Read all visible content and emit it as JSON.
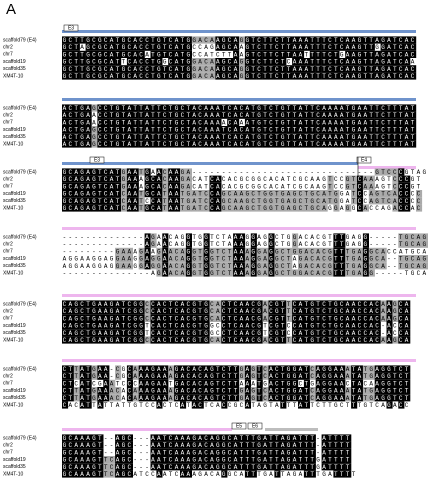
{
  "panel_label": "A",
  "blocks": [
    {
      "exons": [
        "E3"
      ],
      "rows": [
        {
          "name": "scaffold79 (E4)",
          "seq": "GCTTGCGCATGCACCTGTCATGGACAAGCAGGTCTTCTTAAATTTCTCAAGTTAGATCAC"
        },
        {
          "name": "chr2",
          "seq": "GCTAGCGCATGCACCTGTCATGCCAGAGCAAGTCTTCTTAAATTTCTCAAGTTGGATCAC"
        },
        {
          "name": "chr7",
          "seq": "GCTTGCGCATGCACATGTCATGCCATCTTAAGTCTTCTTAATTTTCTGAAGTTAGATCAC"
        },
        {
          "name": "scaffold19",
          "seq": "GCTTGCGCATTCACCTGGCATGGACAAGCAGGTCTTCTCAAATTTCTCAAGTTAGATCAA"
        },
        {
          "name": "scaffold35",
          "seq": "GCTTGCGCATGCACCTGTCATGGACAAGCAGGTCTTCTTAAATTTCTCAAGTTAGATCAC"
        },
        {
          "name": "XM4T-10",
          "seq": "GCTTGCGCATGCACCTGTCATGGACAAGCAGGTCTTCTTAAATTTCTCAAGTTAGATCAC"
        }
      ]
    },
    {
      "exons": [],
      "rows": [
        {
          "name": "scaffold79 (E4)",
          "seq": "ACTGAGCCTGTATTATTCTGCTACAAATCACATGTCTGTTATTCAAAATGAATTCTTTAT"
        },
        {
          "name": "chr2",
          "seq": "ACTGAACCTGTATTATTCTGCTACAAATCACATGTCTGTTATTCAAAATGAATTCTTTAT"
        },
        {
          "name": "chr7",
          "seq": "ACTGAACCTGTATTATTCTGCTACAAAACAAATGTCTGTTATTCAAAATGAATTCTTTAT"
        },
        {
          "name": "scaffold19",
          "seq": "ACTGAGCCTGTATTATTCTGCTACAAATCACATGTCTGTTATTCAAAATGAATTCTTTAT"
        },
        {
          "name": "scaffold35",
          "seq": "ACTGAGCCTGTATTATTCTGCTACAAATCACATGTCTGTTATTCAAAATGAATTCTTTAT"
        },
        {
          "name": "XM4T-10",
          "seq": "ACTGAGCCTGTATTATTCTGCTACAAATCACATGTCTGTTATTCAAAATGAATTCTTTAT"
        }
      ]
    },
    {
      "exons": [
        "E3",
        "E4"
      ],
      "rows": [
        {
          "name": "scaffold79 (E4)",
          "seq": "GCAGAGTCATGAATGAACAAGA-------------------------------GTCCCGTAGC"
        },
        {
          "name": "chr2",
          "seq": "GCAGAGTCATGAAAGCACAAGACATCACACGCGGCACATCGCAAGTCCGTCAAAGTCCCGT"
        },
        {
          "name": "chr7",
          "seq": "GCAGAGTCATGAAAGCACAAGACATCACACGCGGCACATCGCAAGTCCGTCAAAGTCCCGT"
        },
        {
          "name": "scaffold19",
          "seq": "GCAGAGTCATCAATGCATAATGATCCAGCAAGCTGGTGAGCTGCATGGATCCAGTCACCCC"
        },
        {
          "name": "scaffold35",
          "seq": "GCAGAGTCATCAATCCATAATGATCCAGCAAGCTGGTGAGCTGCATGGATCCAGTCACCCC"
        },
        {
          "name": "XM4T-10",
          "seq": "GCAGAGTCATCAATGCATAATGATCCAGCAAGCTGGTGAGCTGCAGGAGGCACCAGACCAC"
        }
      ]
    },
    {
      "exons": [],
      "rows": [
        {
          "name": "scaffold79 (E4)",
          "seq": "--------------AGAACAGGTGGTCTAAAGGAGGCTGGACACGTTTGAGG-----TGCAGCA"
        },
        {
          "name": "chr2",
          "seq": "--------------AGAACAGGTGGTCTAAAGGAGGCTGGACACGTTTGAGG-----TGCAGCA"
        },
        {
          "name": "chr7",
          "seq": "---------GAAAGAAGAACAGGTGGTCTAAAGGAGGCTGGACACGTTTGAGGCACCATGCAGCA"
        },
        {
          "name": "scaffold19",
          "seq": "AGGAAGGAGGAAGGAGGAACAGGTGGTCTAAAGGAGGCTAGACACGTTTGAGGCA--TGCAGCA"
        },
        {
          "name": "scaffold35",
          "seq": "AGGAAGGAGGAAGGAGGAACAGGTGGTCTAAAGGAGGCTAGACACGTTTGAGGCA--TGCAGCA"
        },
        {
          "name": "XM4T-10",
          "seq": "---------------AGAACAGGTGGTCTAAAGGAGGCTGGACACGTTTGAGG-----TGCAGCA"
        }
      ]
    },
    {
      "exons": [],
      "rows": [
        {
          "name": "scaffold79 (E4)",
          "seq": "CAGCTGAAGATCGGCCACTCACGTGCACTCAACGACGTTCATGTCTGCAACCACAAGCA"
        },
        {
          "name": "chr2",
          "seq": "CAGCTGAAGATCGGCCACTCACGTGCACTCAACGACGTTCATGTCTGCAACCACAAGCA"
        },
        {
          "name": "chr7",
          "seq": "CAGCTGAAGATCGGCCACTCACGTGCACTCAACGACGTTCATGTCTGCAACCACAAGCA"
        },
        {
          "name": "scaffold19",
          "seq": "CAGCTGAAGATCGGTCACTCACGTGGCCTCAACGTCGTCCATGTCTGCAACCAC-ACCA"
        },
        {
          "name": "scaffold35",
          "seq": "CAGCTGAAGATCGGTCACTCACGTGGCCTCAACGTCGTCCATGTCTGCAACCAC-ACCA"
        },
        {
          "name": "XM4T-10",
          "seq": "CAGCTGAAGATCGGCCACTCACGTGCACTCAACGACGTTCATGTCTGCAACCACAAGCA"
        }
      ]
    },
    {
      "exons": [],
      "rows": [
        {
          "name": "scaffold79 (E4)",
          "seq": "CTTATGAA-CGCAAAGAAAGACACAGTCTTGAGTCACTGGATCAGGAAATATGAGGTCT"
        },
        {
          "name": "chr2",
          "seq": "CTTATGAA-CGCAAAGAAAGACACAGTCTTGAGTCACTGGATCAGGAAATATGAGGTCT"
        },
        {
          "name": "chr7",
          "seq": "CTCATCGAATCCCAAGAATGACACAGTCTTAAATGACTGGCTGAGGAACTACAAGGTCT"
        },
        {
          "name": "scaffold19",
          "seq": "CTTATGAAACACAAAGAAAGACACAGTCTTGAGTCACTGGATCAGGAAATATGAGGTCT"
        },
        {
          "name": "scaffold35",
          "seq": "CTTATGAAACACAAAGAAAGACACAGTCTTGAGTCACTGGATCAGGAAATATGAGGTCT"
        },
        {
          "name": "XM4T-10",
          "seq": "CACATTATTATTGTCCACTCATACTCACCGCATAGTATTTATTCTTGCTTTGTCAGACC"
        }
      ]
    },
    {
      "exons": [
        "E5",
        "E6"
      ],
      "rows": [
        {
          "name": "scaffold79 (E4)",
          "seq": "GCAAAGT--AGC---AATCAAAGACAGGCATTTGATTAGATTT-ATTTT"
        },
        {
          "name": "chr2",
          "seq": "GCAAAGT--AGC---AATCAAAGACAGGCATTTGATTAGATTT-ATTTT"
        },
        {
          "name": "chr7",
          "seq": "GCAAAGT--AGC---AATCAAAGACAGGCATTTGATTAGATTT-ATTTT"
        },
        {
          "name": "scaffold19",
          "seq": "GCAAAGTTCAGC---AATCAAAGACAGGCATTTGATTAGATTTGATTTT"
        },
        {
          "name": "scaffold35",
          "seq": "GCAAAGTTCAGC---AATCAAAGACAGGCATTTGATTAGATTTGATTTT"
        },
        {
          "name": "XM4T-10",
          "seq": "GCAAAGTTCAGCATCCAATCAAAGACAGGCATTTGATTAGATTTGATTTT"
        }
      ]
    }
  ]
}
